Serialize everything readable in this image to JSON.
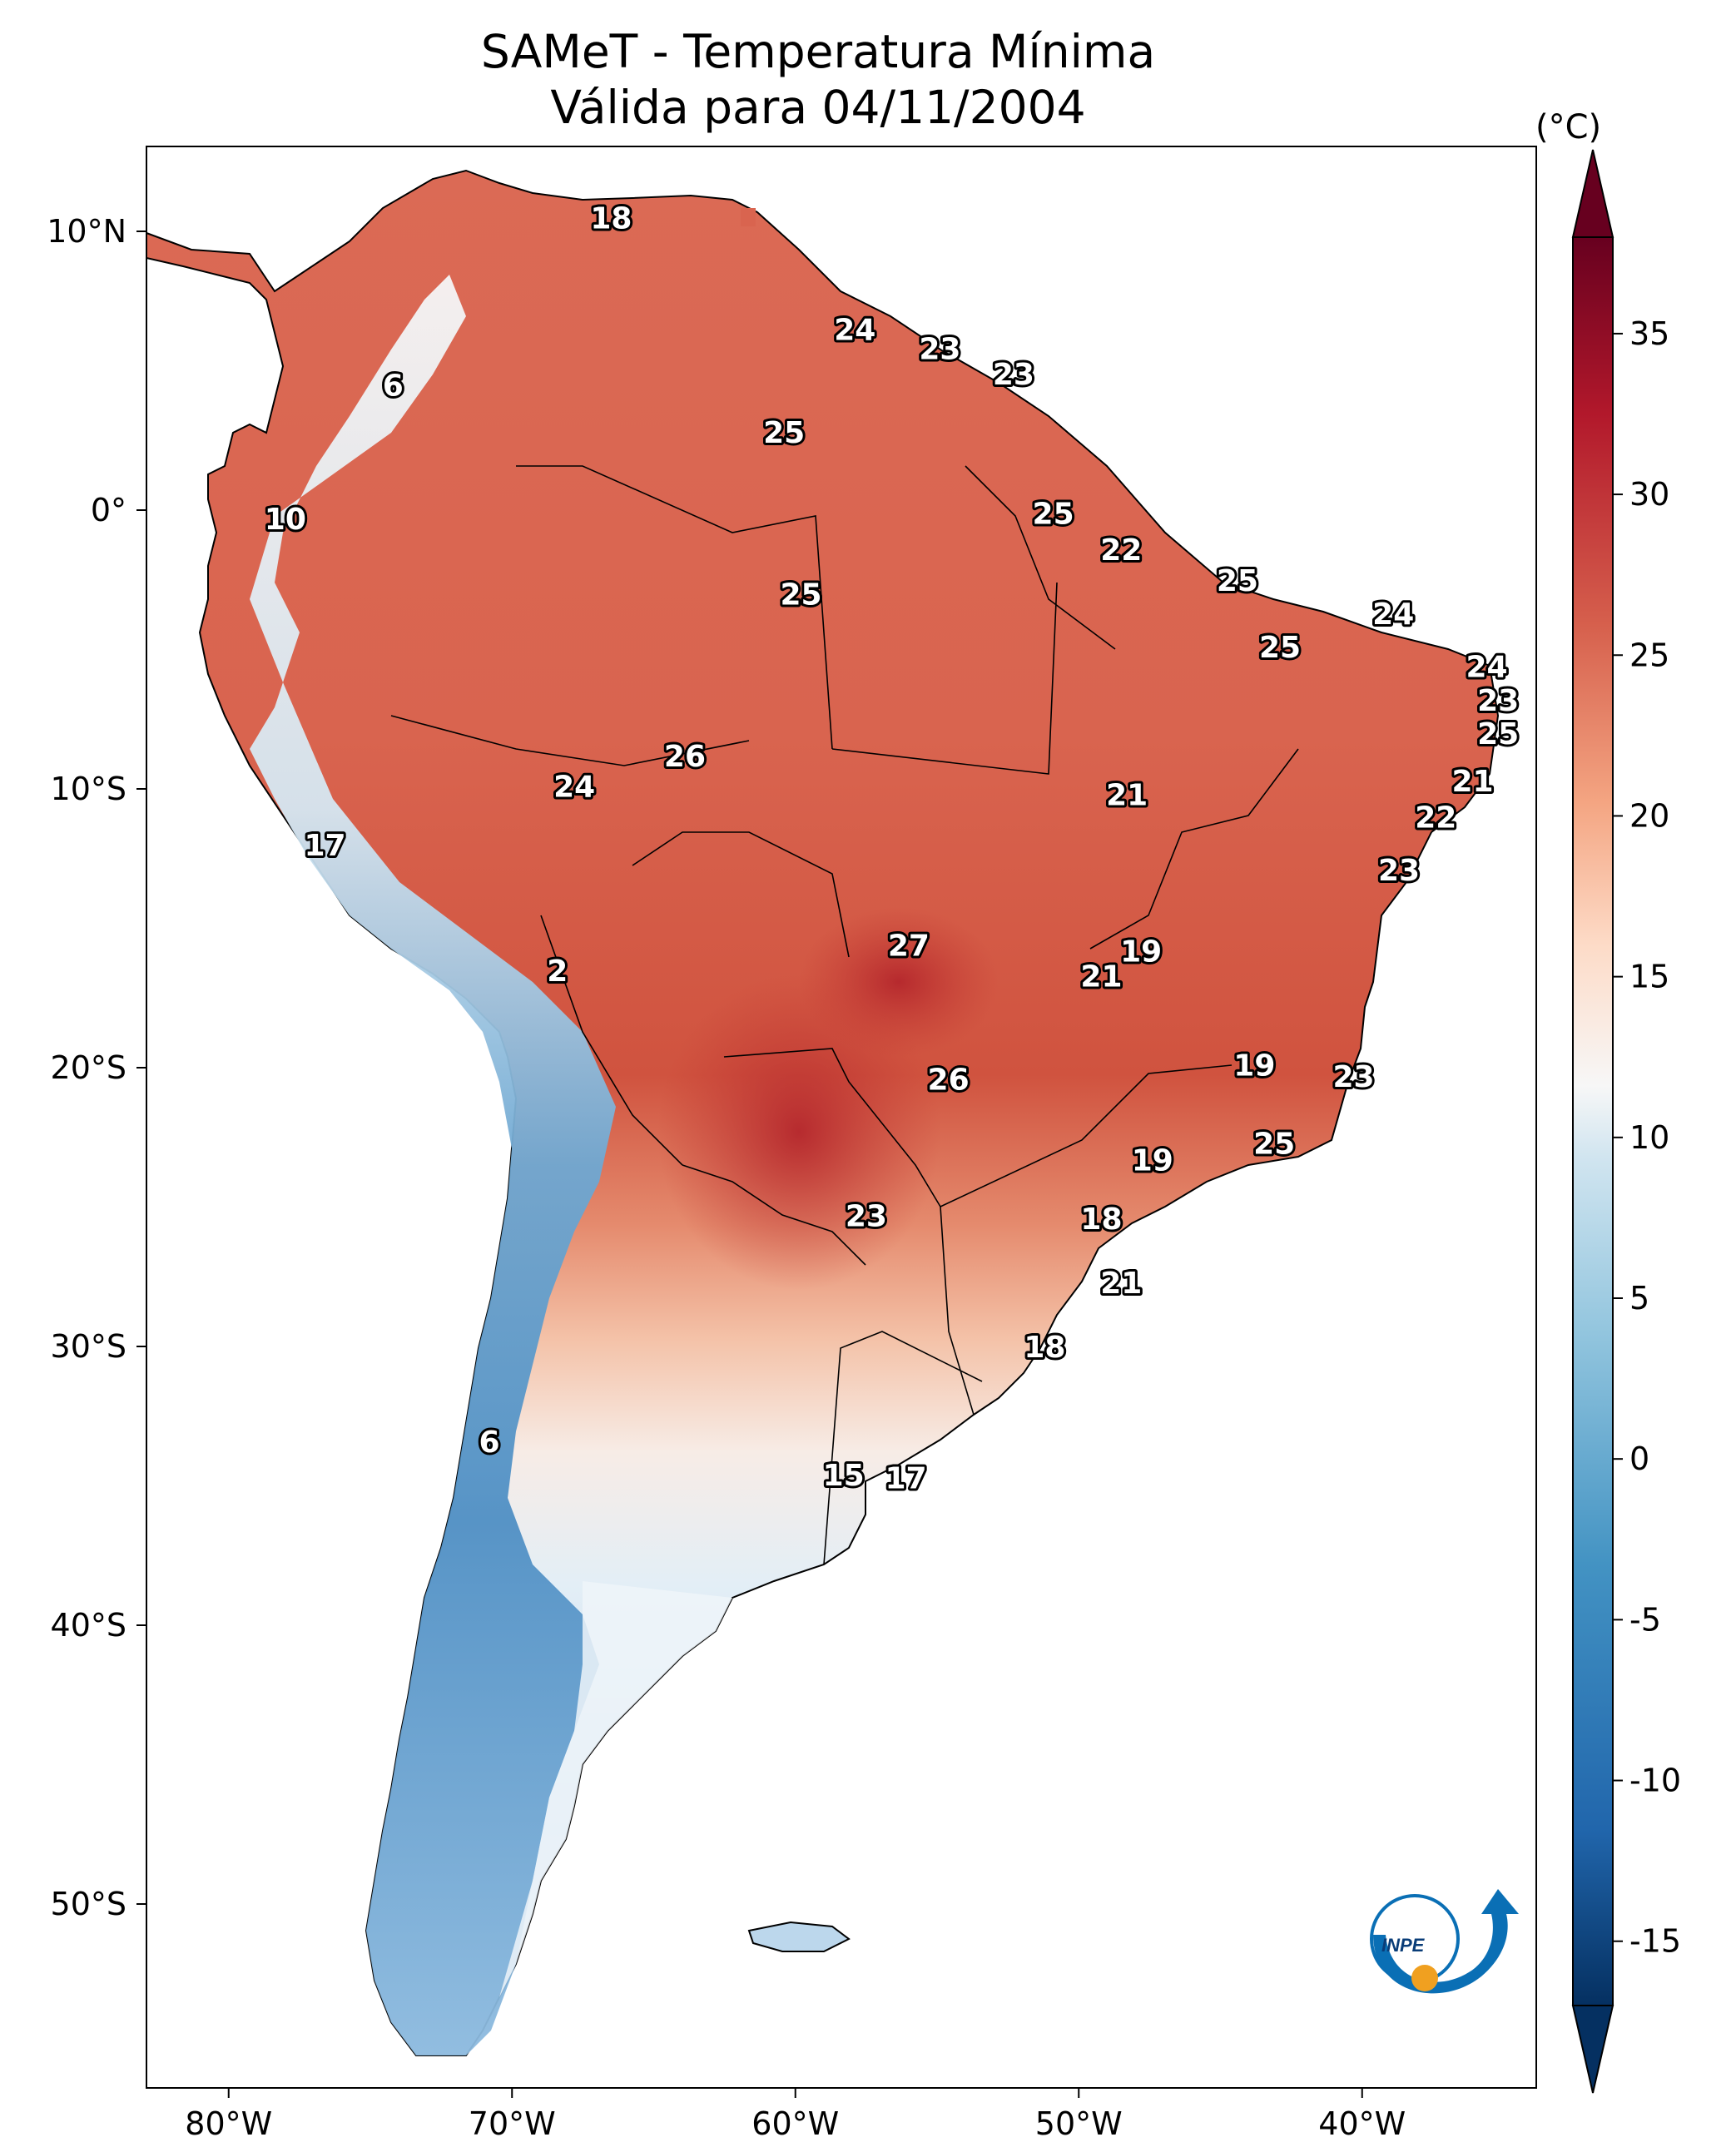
{
  "title": {
    "line1": "SAMeT - Temperatura Mínima",
    "line2": "Válida para 04/11/2004"
  },
  "colorbar": {
    "unit": "(°C)",
    "ticks": [
      "35",
      "30",
      "25",
      "20",
      "15",
      "10",
      "5",
      "0",
      "-5",
      "-10",
      "-15"
    ],
    "range": [
      -15,
      35
    ]
  },
  "axes": {
    "lon_ticks": [
      "80°W",
      "70°W",
      "60°W",
      "50°W",
      "40°W"
    ],
    "lat_ticks": [
      "10°N",
      "0°",
      "10°S",
      "20°S",
      "30°S",
      "40°S",
      "50°S"
    ]
  },
  "labels": [
    {
      "text": "18",
      "lon": -66.5,
      "lat": 10.5
    },
    {
      "text": "24",
      "lon": -57.9,
      "lat": 6.5
    },
    {
      "text": "23",
      "lon": -54.9,
      "lat": 5.8
    },
    {
      "text": "23",
      "lon": -52.3,
      "lat": 4.9
    },
    {
      "text": "6",
      "lon": -74.2,
      "lat": 4.5
    },
    {
      "text": "25",
      "lon": -60.4,
      "lat": 2.8
    },
    {
      "text": "10",
      "lon": -78.0,
      "lat": -0.3
    },
    {
      "text": "25",
      "lon": -50.9,
      "lat": -0.1
    },
    {
      "text": "22",
      "lon": -48.5,
      "lat": -1.4
    },
    {
      "text": "25",
      "lon": -59.8,
      "lat": -3.0
    },
    {
      "text": "25",
      "lon": -44.4,
      "lat": -2.5
    },
    {
      "text": "24",
      "lon": -38.9,
      "lat": -3.7
    },
    {
      "text": "25",
      "lon": -42.9,
      "lat": -4.9
    },
    {
      "text": "24",
      "lon": -35.6,
      "lat": -5.6
    },
    {
      "text": "23",
      "lon": -35.2,
      "lat": -6.8
    },
    {
      "text": "25",
      "lon": -35.2,
      "lat": -8.0
    },
    {
      "text": "26",
      "lon": -63.9,
      "lat": -8.8
    },
    {
      "text": "21",
      "lon": -36.1,
      "lat": -9.7
    },
    {
      "text": "24",
      "lon": -67.8,
      "lat": -9.9
    },
    {
      "text": "21",
      "lon": -48.3,
      "lat": -10.2
    },
    {
      "text": "22",
      "lon": -37.4,
      "lat": -11.0
    },
    {
      "text": "17",
      "lon": -76.6,
      "lat": -12.0
    },
    {
      "text": "23",
      "lon": -38.7,
      "lat": -12.9
    },
    {
      "text": "27",
      "lon": -56.0,
      "lat": -15.6
    },
    {
      "text": "19",
      "lon": -47.8,
      "lat": -15.8
    },
    {
      "text": "21",
      "lon": -49.2,
      "lat": -16.7
    },
    {
      "text": "2",
      "lon": -68.4,
      "lat": -16.5
    },
    {
      "text": "19",
      "lon": -43.8,
      "lat": -19.9
    },
    {
      "text": "26",
      "lon": -54.6,
      "lat": -20.4
    },
    {
      "text": "23",
      "lon": -40.3,
      "lat": -20.3
    },
    {
      "text": "25",
      "lon": -43.1,
      "lat": -22.7
    },
    {
      "text": "19",
      "lon": -47.4,
      "lat": -23.3
    },
    {
      "text": "23",
      "lon": -57.5,
      "lat": -25.3
    },
    {
      "text": "18",
      "lon": -49.2,
      "lat": -25.4
    },
    {
      "text": "21",
      "lon": -48.5,
      "lat": -27.7
    },
    {
      "text": "18",
      "lon": -51.2,
      "lat": -30.0
    },
    {
      "text": "6",
      "lon": -70.8,
      "lat": -33.4
    },
    {
      "text": "15",
      "lon": -58.3,
      "lat": -34.6
    },
    {
      "text": "17",
      "lon": -56.1,
      "lat": -34.7
    }
  ],
  "colors": {
    "cold": "#0c3d78",
    "mid": "#f7f7f7",
    "warm": "#d6604d",
    "hot": "#67001f",
    "inpe_blue": "#0a6fb5",
    "inpe_orange": "#f0a020"
  },
  "logo": {
    "text": "INPE"
  }
}
